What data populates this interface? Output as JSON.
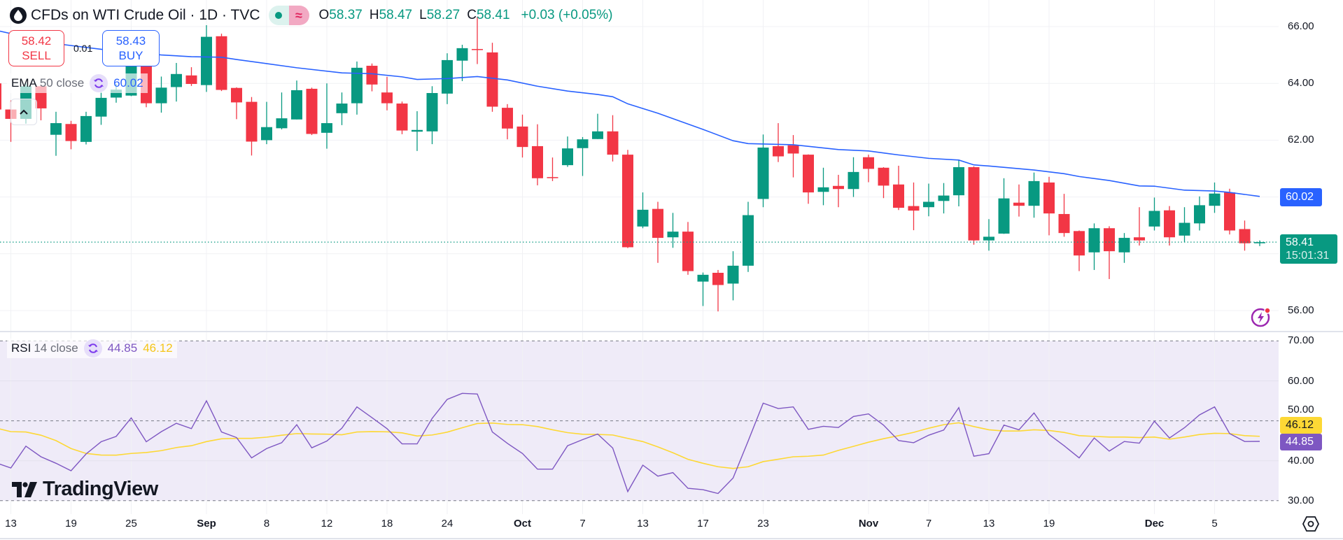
{
  "header": {
    "title": "CFDs on WTI Crude Oil · 1D · TVC",
    "market_status_icon": "market-open-dot",
    "data_delay_icon": "approx-icon",
    "data_delay_glyph": "≈",
    "o_label": "O",
    "o": "58.37",
    "h_label": "H",
    "h": "58.47",
    "l_label": "L",
    "l": "58.27",
    "c_label": "C",
    "c": "58.41",
    "change": "+0.03 (+0.05%)"
  },
  "trade": {
    "sell_price": "58.42",
    "sell_label": "SELL",
    "spread": "0.01",
    "buy_price": "58.43",
    "buy_label": "BUY"
  },
  "legend": {
    "ema_name": "EMA",
    "ema_params": "50 close",
    "ema_value": "60.02",
    "rsi_name": "RSI",
    "rsi_params": "14 close",
    "rsi_value": "44.85",
    "rsi_ma_value": "46.12"
  },
  "price_axis": {
    "ticks": [
      "66.00",
      "64.00",
      "62.00",
      "56.00"
    ],
    "ema_tag": "60.02",
    "last_price": "58.41",
    "countdown": "15:01:31"
  },
  "rsi_axis": {
    "ticks": [
      "70.00",
      "60.00",
      "50.00",
      "40.00",
      "30.00"
    ],
    "ma_tag": "46.12",
    "rsi_tag": "44.85"
  },
  "logo": "TradingView",
  "colors": {
    "up": "#089981",
    "down": "#f23645",
    "ema": "#2962ff",
    "rsi": "#7e57c2",
    "rsi_ma": "#fdd835",
    "rsi_band": "#efebf8"
  },
  "chart_data": {
    "type": "candlestick",
    "title": "CFDs on WTI Crude Oil · 1D · TVC",
    "ylim": [
      55.29,
      66.94
    ],
    "price_gridlines": [
      56,
      58,
      60,
      62,
      64,
      66
    ],
    "last_price": 58.41,
    "x_ticks": [
      {
        "label": "13",
        "date": "Aug 13"
      },
      {
        "label": "19",
        "date": "Aug 19"
      },
      {
        "label": "25",
        "date": "Aug 25"
      },
      {
        "label": "Sep",
        "date": "Sep 2"
      },
      {
        "label": "8",
        "date": "Sep 8"
      },
      {
        "label": "12",
        "date": "Sep 12"
      },
      {
        "label": "18",
        "date": "Sep 18"
      },
      {
        "label": "24",
        "date": "Sep 24"
      },
      {
        "label": "Oct",
        "date": "Oct 1"
      },
      {
        "label": "7",
        "date": "Oct 7"
      },
      {
        "label": "13",
        "date": "Oct 13"
      },
      {
        "label": "17",
        "date": "Oct 17"
      },
      {
        "label": "23",
        "date": "Oct 23"
      },
      {
        "label": "Nov",
        "date": "Nov 3"
      },
      {
        "label": "7",
        "date": "Nov 7"
      },
      {
        "label": "13",
        "date": "Nov 13"
      },
      {
        "label": "19",
        "date": "Nov 19"
      },
      {
        "label": "Dec",
        "date": "Dec 1"
      },
      {
        "label": "5",
        "date": "Dec 5"
      }
    ],
    "dates": [
      "Aug 12",
      "Aug 13",
      "Aug 14",
      "Aug 15",
      "Aug 18",
      "Aug 19",
      "Aug 20",
      "Aug 21",
      "Aug 22",
      "Aug 25",
      "Aug 26",
      "Aug 27",
      "Aug 28",
      "Aug 29",
      "Sep 2",
      "Sep 3",
      "Sep 4",
      "Sep 5",
      "Sep 8",
      "Sep 9",
      "Sep 10",
      "Sep 11",
      "Sep 12",
      "Sep 15",
      "Sep 16",
      "Sep 17",
      "Sep 18",
      "Sep 19",
      "Sep 22",
      "Sep 23",
      "Sep 24",
      "Sep 25",
      "Sep 26",
      "Sep 29",
      "Sep 30",
      "Oct 1",
      "Oct 2",
      "Oct 3",
      "Oct 6",
      "Oct 7",
      "Oct 8",
      "Oct 9",
      "Oct 10",
      "Oct 13",
      "Oct 14",
      "Oct 15",
      "Oct 16",
      "Oct 17",
      "Oct 20",
      "Oct 21",
      "Oct 22",
      "Oct 23",
      "Oct 24",
      "Oct 27",
      "Oct 28",
      "Oct 29",
      "Oct 30",
      "Oct 31",
      "Nov 3",
      "Nov 4",
      "Nov 5",
      "Nov 6",
      "Nov 7",
      "Nov 10",
      "Nov 11",
      "Nov 12",
      "Nov 13",
      "Nov 14",
      "Nov 17",
      "Nov 18",
      "Nov 19",
      "Nov 20",
      "Nov 21",
      "Nov 24",
      "Nov 25",
      "Nov 26",
      "Nov 28",
      "Dec 1",
      "Dec 2",
      "Dec 3",
      "Dec 4",
      "Dec 5",
      "Dec 8",
      "Dec 9",
      "Dec 10"
    ],
    "ohlc": [
      [
        64.0,
        64.1,
        62.9,
        63.08
      ],
      [
        63.08,
        63.4,
        61.94,
        62.75
      ],
      [
        62.75,
        64.0,
        62.58,
        63.9
      ],
      [
        63.9,
        63.95,
        62.7,
        63.12
      ],
      [
        62.19,
        63.0,
        61.45,
        62.6
      ],
      [
        62.57,
        62.68,
        61.68,
        61.97
      ],
      [
        61.94,
        63.0,
        61.85,
        62.85
      ],
      [
        62.83,
        63.69,
        62.54,
        63.49
      ],
      [
        63.5,
        63.98,
        63.32,
        63.78
      ],
      [
        63.57,
        64.8,
        63.55,
        64.68
      ],
      [
        64.68,
        64.8,
        63.16,
        63.3
      ],
      [
        63.3,
        64.24,
        62.97,
        63.85
      ],
      [
        63.87,
        64.72,
        63.36,
        64.33
      ],
      [
        64.28,
        64.57,
        63.91,
        63.98
      ],
      [
        63.94,
        66.05,
        63.7,
        65.64
      ],
      [
        65.66,
        65.75,
        63.73,
        63.77
      ],
      [
        63.84,
        63.86,
        62.74,
        63.33
      ],
      [
        63.35,
        63.52,
        61.46,
        61.95
      ],
      [
        62.0,
        63.35,
        61.86,
        62.46
      ],
      [
        62.42,
        63.68,
        62.38,
        62.77
      ],
      [
        62.73,
        64.1,
        62.73,
        63.76
      ],
      [
        63.81,
        63.85,
        62.18,
        62.22
      ],
      [
        62.26,
        64.0,
        61.7,
        62.6
      ],
      [
        62.95,
        63.68,
        62.53,
        63.29
      ],
      [
        63.3,
        64.77,
        62.9,
        64.55
      ],
      [
        64.62,
        64.7,
        63.72,
        63.96
      ],
      [
        63.68,
        64.23,
        63.05,
        63.3
      ],
      [
        63.29,
        63.36,
        62.21,
        62.34
      ],
      [
        62.3,
        63.02,
        61.62,
        62.36
      ],
      [
        62.31,
        63.9,
        61.86,
        63.66
      ],
      [
        63.64,
        65.06,
        63.27,
        64.82
      ],
      [
        64.8,
        65.36,
        64.08,
        65.24
      ],
      [
        65.21,
        66.34,
        64.68,
        65.2
      ],
      [
        65.09,
        65.43,
        63.0,
        63.18
      ],
      [
        63.14,
        63.27,
        62.03,
        62.41
      ],
      [
        62.48,
        62.9,
        61.39,
        61.76
      ],
      [
        61.79,
        62.56,
        60.41,
        60.66
      ],
      [
        60.7,
        61.39,
        60.56,
        60.69
      ],
      [
        61.12,
        62.13,
        61.06,
        61.71
      ],
      [
        61.72,
        62.11,
        60.74,
        62.03
      ],
      [
        62.04,
        62.93,
        62.04,
        62.31
      ],
      [
        62.31,
        62.88,
        61.25,
        61.49
      ],
      [
        61.49,
        61.66,
        58.2,
        58.23
      ],
      [
        58.96,
        60.16,
        58.9,
        59.55
      ],
      [
        59.58,
        59.83,
        57.68,
        58.56
      ],
      [
        58.58,
        59.44,
        58.21,
        58.78
      ],
      [
        58.78,
        59.12,
        57.26,
        57.39
      ],
      [
        57.02,
        57.34,
        56.16,
        57.26
      ],
      [
        57.33,
        57.43,
        55.97,
        56.9
      ],
      [
        56.95,
        58.09,
        56.36,
        57.58
      ],
      [
        57.58,
        59.83,
        57.36,
        59.36
      ],
      [
        59.93,
        62.2,
        59.64,
        61.74
      ],
      [
        61.79,
        62.6,
        61.23,
        61.43
      ],
      [
        61.82,
        62.18,
        60.69,
        61.53
      ],
      [
        61.49,
        61.5,
        59.76,
        60.16
      ],
      [
        60.18,
        61.03,
        59.71,
        60.34
      ],
      [
        60.39,
        60.78,
        59.64,
        60.28
      ],
      [
        60.28,
        61.4,
        60.0,
        60.88
      ],
      [
        61.4,
        61.49,
        60.52,
        60.99
      ],
      [
        61.03,
        61.05,
        59.96,
        60.4
      ],
      [
        60.44,
        61.1,
        59.54,
        59.62
      ],
      [
        59.68,
        60.51,
        58.83,
        59.52
      ],
      [
        59.64,
        60.47,
        59.32,
        59.83
      ],
      [
        59.86,
        60.49,
        59.42,
        60.05
      ],
      [
        60.06,
        61.29,
        59.67,
        61.05
      ],
      [
        61.05,
        61.08,
        58.32,
        58.47
      ],
      [
        58.47,
        59.22,
        58.11,
        58.6
      ],
      [
        58.71,
        60.66,
        58.7,
        59.95
      ],
      [
        59.8,
        60.44,
        59.31,
        59.69
      ],
      [
        59.69,
        60.86,
        59.27,
        60.56
      ],
      [
        60.51,
        60.71,
        58.65,
        59.42
      ],
      [
        59.4,
        60.11,
        58.6,
        58.73
      ],
      [
        58.8,
        58.82,
        57.39,
        57.94
      ],
      [
        58.05,
        59.07,
        57.43,
        58.9
      ],
      [
        58.9,
        58.97,
        57.11,
        58.09
      ],
      [
        58.05,
        58.73,
        57.68,
        58.56
      ],
      [
        58.58,
        59.64,
        58.29,
        58.47
      ],
      [
        58.96,
        59.98,
        58.82,
        59.51
      ],
      [
        59.53,
        59.68,
        58.29,
        58.58
      ],
      [
        58.64,
        59.64,
        58.4,
        59.09
      ],
      [
        59.07,
        60.02,
        58.82,
        59.71
      ],
      [
        59.69,
        60.51,
        59.44,
        60.12
      ],
      [
        60.16,
        60.29,
        58.68,
        58.82
      ],
      [
        58.87,
        59.17,
        58.11,
        58.37
      ],
      [
        58.37,
        58.47,
        58.27,
        58.41
      ]
    ],
    "ema": {
      "name": "EMA 50 close",
      "points": [
        [
          "Aug 12",
          65.87
        ],
        [
          "Aug 18",
          65.4
        ],
        [
          "Aug 21",
          65.2
        ],
        [
          "Aug 27",
          65.0
        ],
        [
          "Aug 29",
          64.94
        ],
        [
          "Sep 3",
          64.92
        ],
        [
          "Sep 4",
          64.84
        ],
        [
          "Sep 10",
          64.55
        ],
        [
          "Sep 15",
          64.37
        ],
        [
          "Sep 17",
          64.34
        ],
        [
          "Sep 19",
          64.23
        ],
        [
          "Sep 22",
          64.14
        ],
        [
          "Sep 24",
          64.17
        ],
        [
          "Sep 26",
          64.24
        ],
        [
          "Sep 30",
          64.12
        ],
        [
          "Oct 2",
          63.9
        ],
        [
          "Oct 6",
          63.73
        ],
        [
          "Oct 8",
          63.61
        ],
        [
          "Oct 9",
          63.53
        ],
        [
          "Oct 10",
          63.28
        ],
        [
          "Oct 14",
          62.95
        ],
        [
          "Oct 17",
          62.38
        ],
        [
          "Oct 21",
          61.98
        ],
        [
          "Oct 22",
          61.88
        ],
        [
          "Oct 27",
          61.84
        ],
        [
          "Oct 30",
          61.67
        ],
        [
          "Nov 3",
          61.62
        ],
        [
          "Nov 5",
          61.48
        ],
        [
          "Nov 7",
          61.36
        ],
        [
          "Nov 11",
          61.3
        ],
        [
          "Nov 12",
          61.13
        ],
        [
          "Nov 13",
          61.09
        ],
        [
          "Nov 18",
          60.95
        ],
        [
          "Nov 20",
          60.82
        ],
        [
          "Nov 21",
          60.72
        ],
        [
          "Nov 25",
          60.58
        ],
        [
          "Nov 28",
          60.39
        ],
        [
          "Dec 1",
          60.38
        ],
        [
          "Dec 3",
          60.24
        ],
        [
          "Dec 5",
          60.21
        ],
        [
          "Dec 8",
          60.16
        ],
        [
          "Dec 10",
          60.02
        ]
      ]
    },
    "rsi": {
      "name": "RSI 14 close",
      "ylim": [
        30,
        70
      ],
      "bands": [
        30,
        50,
        70
      ],
      "gridlines": [
        40,
        60
      ],
      "values": [
        39.5,
        38.2,
        43.65,
        41.0,
        39.37,
        37.5,
        41.7,
        44.76,
        46.1,
        50.73,
        44.76,
        47.28,
        49.38,
        48.04,
        55.0,
        47.2,
        45.81,
        40.72,
        43.06,
        44.52,
        49.03,
        43.24,
        44.93,
        48.16,
        53.48,
        50.79,
        48.04,
        44.23,
        44.23,
        50.61,
        55.36,
        56.88,
        56.71,
        47.2,
        44.35,
        41.83,
        37.9,
        37.9,
        43.76,
        45.29,
        46.69,
        43.18,
        32.28,
        38.9,
        36.15,
        37.03,
        33.1,
        32.75,
        31.8,
        35.68,
        44.93,
        54.42,
        53.07,
        53.48,
        47.86,
        48.62,
        48.33,
        51.08,
        51.73,
        48.92,
        45.05,
        44.52,
        46.4,
        47.69,
        53.3,
        41.13,
        41.77,
        48.92,
        47.75,
        51.96,
        46.57,
        43.76,
        40.72,
        45.7,
        42.42,
        44.82,
        44.41,
        49.91,
        45.7,
        48.27,
        51.49,
        53.48,
        46.8,
        44.82,
        44.85
      ],
      "ma_values": [
        48.2,
        47.28,
        47.2,
        46.4,
        45.05,
        43.06,
        41.83,
        41.42,
        41.4,
        41.83,
        42.06,
        42.53,
        43.3,
        43.76,
        44.8,
        45.5,
        45.6,
        45.6,
        45.9,
        46.4,
        46.8,
        46.7,
        46.65,
        46.5,
        47.2,
        47.3,
        47.25,
        46.98,
        46.2,
        46.45,
        47.16,
        48.27,
        49.33,
        49.44,
        49.1,
        49.03,
        48.56,
        47.75,
        47.04,
        46.63,
        46.6,
        46.45,
        45.6,
        44.8,
        43.47,
        42.0,
        40.37,
        39.37,
        38.5,
        38.08,
        38.5,
        39.78,
        40.37,
        41.0,
        41.13,
        41.42,
        42.6,
        43.6,
        44.64,
        45.52,
        46.28,
        47.1,
        48.15,
        49.03,
        49.5,
        48.56,
        47.75,
        47.45,
        47.45,
        47.75,
        47.57,
        47.1,
        46.28,
        46.1,
        45.93,
        45.93,
        45.81,
        45.93,
        45.4,
        45.93,
        46.57,
        46.87,
        46.8,
        46.28,
        46.12
      ]
    }
  }
}
